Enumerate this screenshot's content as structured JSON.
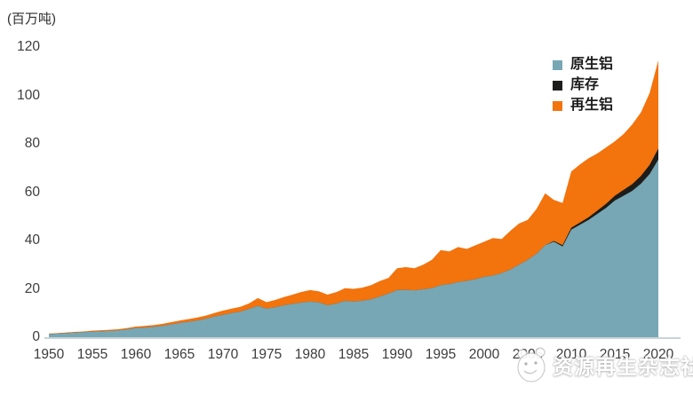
{
  "chart_data": {
    "type": "area",
    "stacked": true,
    "unit_label": "(百万吨)",
    "grid": false,
    "legend_position": "top-right",
    "xlim": [
      1950,
      2020
    ],
    "ylim": [
      0,
      120
    ],
    "y_ticks": [
      0,
      20,
      40,
      60,
      80,
      100,
      120
    ],
    "x_tick_labels": [
      "1950",
      "1955",
      "1960",
      "1965",
      "1970",
      "1975",
      "1980",
      "1985",
      "1990",
      "1995",
      "2000",
      "2005",
      "2010",
      "2015",
      "2020"
    ],
    "x": [
      1950,
      1951,
      1952,
      1953,
      1954,
      1955,
      1956,
      1957,
      1958,
      1959,
      1960,
      1961,
      1962,
      1963,
      1964,
      1965,
      1966,
      1967,
      1968,
      1969,
      1970,
      1971,
      1972,
      1973,
      1974,
      1975,
      1976,
      1977,
      1978,
      1979,
      1980,
      1981,
      1982,
      1983,
      1984,
      1985,
      1986,
      1987,
      1988,
      1989,
      1990,
      1991,
      1992,
      1993,
      1994,
      1995,
      1996,
      1997,
      1998,
      1999,
      2000,
      2001,
      2002,
      2003,
      2004,
      2005,
      2006,
      2007,
      2008,
      2009,
      2010,
      2011,
      2012,
      2013,
      2014,
      2015,
      2016,
      2017,
      2018,
      2019,
      2020
    ],
    "series": [
      {
        "id": "primary-aluminum",
        "name": "原生铝",
        "color": "#77a7b4",
        "values": [
          1.3,
          1.5,
          1.7,
          1.9,
          2.1,
          2.3,
          2.5,
          2.6,
          2.8,
          3.3,
          3.8,
          4.0,
          4.3,
          4.7,
          5.3,
          5.9,
          6.4,
          6.9,
          7.6,
          8.5,
          9.3,
          10.0,
          10.6,
          11.7,
          13.0,
          11.8,
          12.4,
          13.2,
          13.8,
          14.3,
          14.7,
          14.4,
          13.2,
          13.9,
          15.0,
          14.8,
          15.1,
          15.7,
          16.8,
          18.0,
          19.5,
          19.6,
          19.4,
          19.8,
          20.3,
          21.5,
          22.0,
          22.8,
          23.3,
          24.0,
          25.0,
          25.5,
          26.5,
          28.0,
          30.0,
          32.0,
          34.5,
          38.0,
          39.5,
          37.5,
          44.5,
          46.5,
          48.5,
          51.0,
          53.5,
          56.5,
          58.5,
          60.5,
          63.5,
          67.5,
          73.5
        ]
      },
      {
        "id": "stock",
        "name": "库存",
        "color": "#1d1d1b",
        "values": [
          0,
          0,
          0,
          0,
          0,
          0,
          0,
          0,
          0,
          0,
          0,
          0,
          0,
          0,
          0,
          0,
          0,
          0,
          0,
          0,
          0,
          0,
          0,
          0,
          0,
          0,
          0,
          0,
          0,
          0,
          0,
          0,
          0,
          0,
          0,
          0,
          0,
          0,
          0,
          0,
          0,
          0,
          0,
          0,
          0,
          0,
          0,
          0,
          0,
          0,
          0,
          0,
          0,
          0,
          0,
          0,
          0,
          0,
          0.3,
          0.6,
          0.8,
          0.9,
          1.1,
          1.4,
          1.7,
          2.0,
          2.4,
          2.8,
          3.2,
          3.8,
          4.5
        ]
      },
      {
        "id": "recycled-aluminum",
        "name": "再生铝",
        "color": "#f3730d",
        "values": [
          0.2,
          0.2,
          0.3,
          0.3,
          0.3,
          0.4,
          0.4,
          0.5,
          0.5,
          0.5,
          0.6,
          0.7,
          0.7,
          0.8,
          0.9,
          1.0,
          1.1,
          1.2,
          1.3,
          1.5,
          1.7,
          1.8,
          2.0,
          2.3,
          3.2,
          2.7,
          3.0,
          3.4,
          3.8,
          4.4,
          4.8,
          4.6,
          4.4,
          4.7,
          5.3,
          5.2,
          5.4,
          5.8,
          6.4,
          6.5,
          9.0,
          9.4,
          9.1,
          10.2,
          11.7,
          14.5,
          13.5,
          14.5,
          13.2,
          14.0,
          14.5,
          15.5,
          14.1,
          16.0,
          17.0,
          16.5,
          18.5,
          21.5,
          17.0,
          17.4,
          23.2,
          24.1,
          24.4,
          23.6,
          23.3,
          22.5,
          23.1,
          24.7,
          26.3,
          29.7,
          36.5
        ]
      }
    ]
  },
  "watermark": {
    "text": "资源再生杂志社",
    "logo": "mascot-logo"
  }
}
